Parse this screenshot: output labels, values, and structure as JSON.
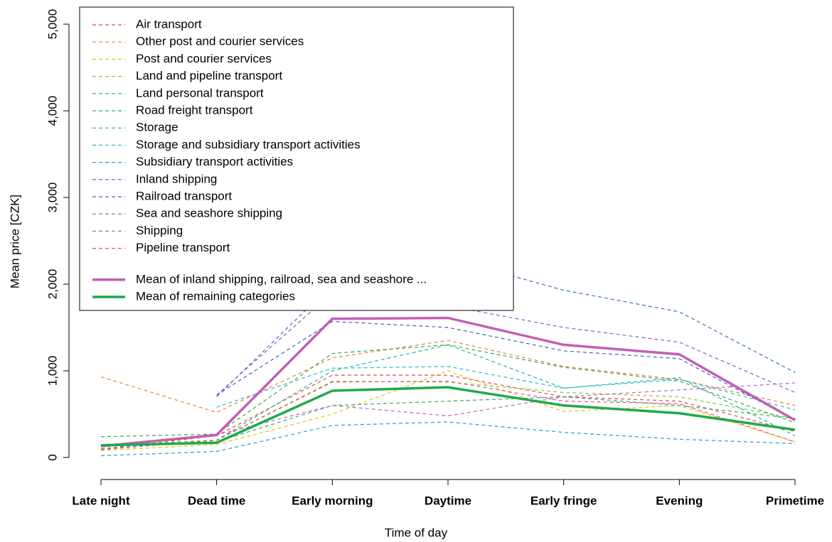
{
  "chart_data": {
    "type": "line",
    "x_label": "Time of day",
    "y_label": "Mean price [CZK]",
    "categories": [
      "Late night",
      "Dead time",
      "Early morning",
      "Daytime",
      "Early fringe",
      "Evening",
      "Primetime"
    ],
    "ylim": [
      0,
      5000
    ],
    "yticks": [
      0,
      {
        "value": 1000,
        "label": "1,000"
      },
      {
        "value": 2000,
        "label": "2,000"
      },
      {
        "value": 3000,
        "label": "3,000"
      },
      {
        "value": 4000,
        "label": "4,000"
      },
      {
        "value": 5000,
        "label": "5,000"
      }
    ],
    "legend": "top-left",
    "series": [
      {
        "name": "Air transport",
        "color": "#e8474b",
        "linestyle": "dashed",
        "values": [
          100,
          250,
          950,
          950,
          700,
          650,
          300
        ]
      },
      {
        "name": "Other post and courier services",
        "color": "#f07f3c",
        "linestyle": "dashed",
        "values": [
          930,
          520,
          1150,
          1350,
          1050,
          900,
          600
        ]
      },
      {
        "name": "Post and courier services",
        "color": "#e6c400",
        "linestyle": "dashed",
        "values": [
          80,
          150,
          500,
          1000,
          530,
          600,
          180
        ]
      },
      {
        "name": "Land and pipeline transport",
        "color": "#8fc43c",
        "linestyle": "dashed",
        "values": [
          150,
          200,
          880,
          870,
          750,
          700,
          450
        ]
      },
      {
        "name": "Land personal transport",
        "color": "#3aa64a",
        "linestyle": "dashed",
        "values": [
          240,
          270,
          1200,
          1300,
          1040,
          880,
          400
        ]
      },
      {
        "name": "Road freight transport",
        "color": "#2eab6b",
        "linestyle": "dashed",
        "values": [
          150,
          180,
          600,
          650,
          700,
          600,
          450
        ]
      },
      {
        "name": "Storage",
        "color": "#22b3a0",
        "linestyle": "dashed",
        "values": [
          100,
          200,
          1000,
          1300,
          800,
          920,
          250
        ]
      },
      {
        "name": "Storage and subsidiary transport activities",
        "color": "#2ab9c8",
        "linestyle": "dashed",
        "values": [
          null,
          580,
          1030,
          1050,
          800,
          900,
          550
        ]
      },
      {
        "name": "Subsidiary transport activities",
        "color": "#2c9ad1",
        "linestyle": "dashed",
        "values": [
          20,
          70,
          370,
          410,
          290,
          210,
          160
        ]
      },
      {
        "name": "Inland shipping",
        "color": "#3b6fbf",
        "linestyle": "dashed",
        "values": [
          null,
          700,
          2000,
          2300,
          1930,
          1680,
          980
        ]
      },
      {
        "name": "Railroad transport",
        "color": "#4b5cc0",
        "linestyle": "dashed",
        "values": [
          null,
          720,
          1570,
          1500,
          1230,
          1140,
          430
        ]
      },
      {
        "name": "Sea and seashore shipping",
        "color": "#7b63c4",
        "linestyle": "dashed",
        "values": [
          null,
          720,
          1900,
          1750,
          1500,
          1330,
          750
        ]
      },
      {
        "name": "Shipping",
        "color": "#c063c0",
        "linestyle": "dashed",
        "values": [
          120,
          260,
          600,
          480,
          700,
          780,
          860
        ]
      },
      {
        "name": "Pipeline transport",
        "color": "#e5508a",
        "linestyle": "dashed",
        "values": [
          90,
          200,
          870,
          880,
          650,
          620,
          180
        ]
      },
      {
        "name": "Mean of inland shipping, railroad, sea and seashore ...",
        "color": "#c25fb4",
        "linestyle": "solid",
        "values": [
          130,
          260,
          1600,
          1610,
          1300,
          1190,
          430
        ]
      },
      {
        "name": "Mean of remaining categories",
        "color": "#1faa4a",
        "linestyle": "solid",
        "values": [
          140,
          170,
          770,
          810,
          600,
          510,
          320
        ]
      }
    ]
  }
}
